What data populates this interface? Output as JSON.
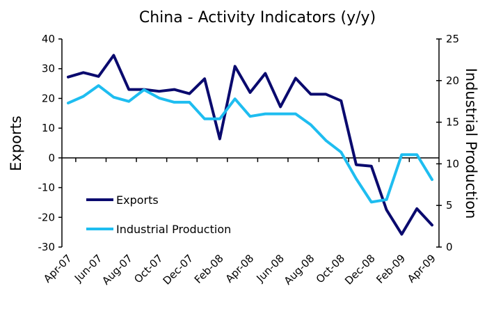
{
  "chart_data": {
    "type": "line",
    "title": "China - Activity Indicators (y/y)",
    "xlabel": "",
    "ylabel": "Exports",
    "y2label": "Industrial Production",
    "ylim": [
      -30,
      40
    ],
    "y2lim": [
      0,
      25
    ],
    "yticks": [
      -30,
      -20,
      -10,
      0,
      10,
      20,
      30,
      40
    ],
    "y2ticks": [
      0,
      5,
      10,
      15,
      20,
      25
    ],
    "x": [
      "Apr-07",
      "May-07",
      "Jun-07",
      "Jul-07",
      "Aug-07",
      "Sep-07",
      "Oct-07",
      "Nov-07",
      "Dec-07",
      "Jan-08",
      "Feb-08",
      "Mar-08",
      "Apr-08",
      "May-08",
      "Jun-08",
      "Jul-08",
      "Aug-08",
      "Sep-08",
      "Oct-08",
      "Nov-08",
      "Dec-08",
      "Jan-09",
      "Feb-09",
      "Mar-09",
      "Apr-09"
    ],
    "xtick_labels": [
      "Apr-07",
      "Jun-07",
      "Aug-07",
      "Oct-07",
      "Dec-07",
      "Feb-08",
      "Apr-08",
      "Jun-08",
      "Aug-08",
      "Oct-08",
      "Dec-08",
      "Feb-09",
      "Apr-09"
    ],
    "series": [
      {
        "name": "Exports",
        "axis": "left",
        "color": "#0a0a6e",
        "values": [
          27.2,
          28.7,
          27.4,
          34.5,
          23.0,
          23.0,
          22.4,
          23.0,
          21.6,
          26.6,
          6.4,
          30.8,
          22.0,
          28.4,
          17.2,
          26.8,
          21.4,
          21.4,
          19.2,
          -2.3,
          -2.8,
          -17.5,
          -25.7,
          -17.1,
          -22.6
        ]
      },
      {
        "name": "Industrial Production",
        "axis": "right",
        "color": "#1ebdf0",
        "values": [
          17.3,
          18.1,
          19.4,
          18.0,
          17.5,
          18.9,
          17.9,
          17.4,
          17.4,
          15.4,
          15.4,
          17.8,
          15.7,
          16.0,
          16.0,
          16.0,
          14.7,
          12.8,
          11.4,
          8.2,
          5.4,
          5.7,
          11.1,
          11.1,
          8.1
        ]
      }
    ],
    "legend": {
      "placement": "bottom-left-inside",
      "entries": [
        "Exports",
        "Industrial Production"
      ]
    },
    "grid": false
  }
}
